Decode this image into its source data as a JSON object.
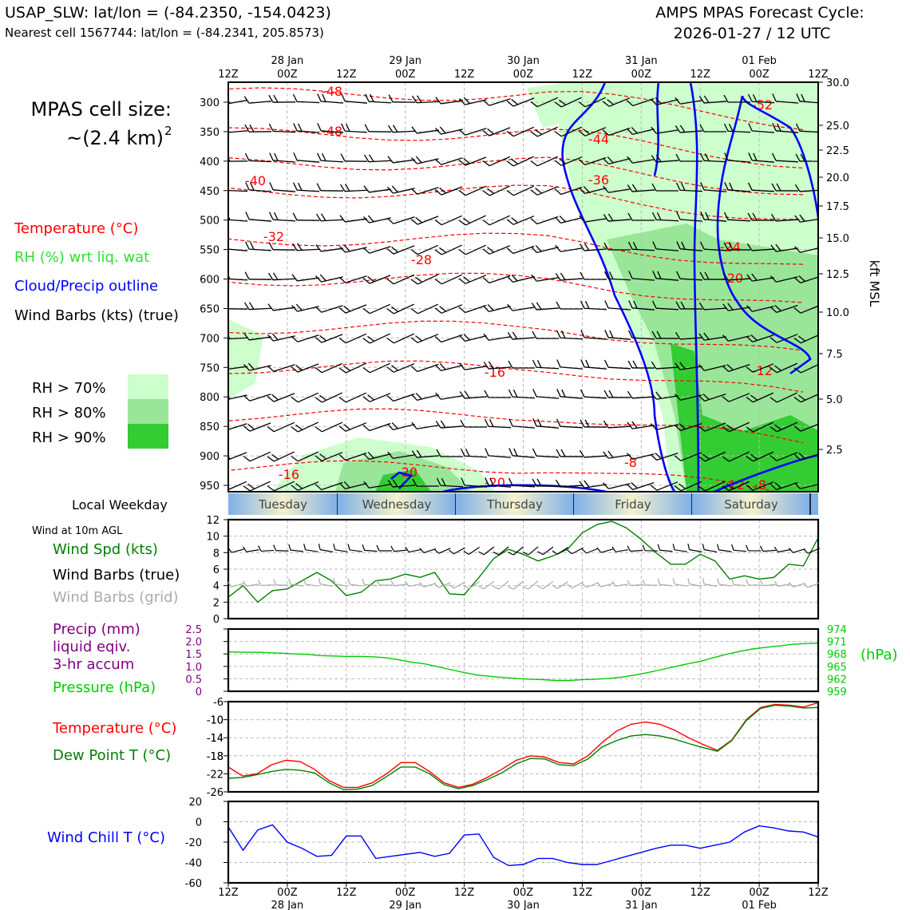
{
  "header": {
    "station_line": "USAP_SLW: lat/lon = (-84.2350, -154.0423)",
    "nearest_line": "Nearest cell 1567744: lat/lon = (-84.2341, 205.8573)",
    "forecast_title": "AMPS MPAS Forecast Cycle:",
    "forecast_cycle": "2026-01-27 / 12 UTC"
  },
  "left_panel": {
    "cell_size_label": "MPAS cell size:",
    "cell_size_value": "~(2.4 km)",
    "cell_size_exponent": "2",
    "legend": [
      {
        "text": "Temperature (°C)",
        "color": "#ff0000"
      },
      {
        "text": "RH (%) wrt liq. wat",
        "color": "#33dd33"
      },
      {
        "text": "Cloud/Precip outline",
        "color": "#0000ff"
      },
      {
        "text": "Wind Barbs (kts) (true)",
        "color": "#000000"
      }
    ],
    "rh_legend": [
      {
        "text": "RH > 70%",
        "color": "#ccffcc"
      },
      {
        "text": "RH > 80%",
        "color": "#99e699"
      },
      {
        "text": "RH > 90%",
        "color": "#33cc33"
      }
    ],
    "weekday_label": "Local Weekday",
    "wind10m_label": "Wind at 10m AGL",
    "wind_legend": [
      {
        "text": "Wind Spd (kts)",
        "color": "#008000"
      },
      {
        "text": "Wind Barbs (true)",
        "color": "#000000"
      },
      {
        "text": "Wind Barbs (grid)",
        "color": "#aaaaaa"
      }
    ],
    "precip_legend": [
      {
        "text": "Precip (mm)",
        "color": "#800080"
      },
      {
        "text": "liquid eqiv.",
        "color": "#800080"
      },
      {
        "text": "3-hr accum",
        "color": "#800080"
      },
      {
        "text": "Pressure (hPa)",
        "color": "#00cc00"
      }
    ],
    "temp_legend": [
      {
        "text": "Temperature (°C)",
        "color": "#ff0000"
      },
      {
        "text": "Dew Point T (°C)",
        "color": "#008000"
      }
    ],
    "windchill_legend": {
      "text": "Wind Chill T (°C)",
      "color": "#0000ff"
    }
  },
  "time_axis": {
    "hour_labels": [
      "12Z",
      "00Z",
      "12Z",
      "00Z",
      "12Z",
      "00Z",
      "12Z",
      "00Z",
      "12Z",
      "00Z",
      "12Z"
    ],
    "date_labels": [
      "28 Jan",
      "29 Jan",
      "30 Jan",
      "31 Jan",
      "01 Feb"
    ]
  },
  "weekdays": [
    "Tuesday",
    "Wednesday",
    "Thursday",
    "Friday",
    "Saturday"
  ],
  "chart_data": [
    {
      "type": "heatmap",
      "title": "Time-height cross section",
      "ylabel_left": "",
      "ylabel_right": "kft MSL",
      "pressure_ticks": [
        300,
        350,
        400,
        450,
        500,
        550,
        600,
        650,
        700,
        750,
        800,
        850,
        900,
        950
      ],
      "height_ticks": [
        "30.0",
        "25.0",
        "22.5",
        "20.0",
        "17.5",
        "15.0",
        "12.5",
        "10.0",
        "7.5",
        "5.0",
        "2.5"
      ],
      "temperature_labels": [
        "-52",
        "-48",
        "-48",
        "-44",
        "-40",
        "-36",
        "-32",
        "-28",
        "-24",
        "-20",
        "-16",
        "-12",
        "-8",
        "-16",
        "-20",
        "-20",
        "-12",
        "-8"
      ]
    },
    {
      "type": "line",
      "title": "Wind at 10m AGL",
      "ylim": [
        0,
        12
      ],
      "yticks": [
        "0",
        "2",
        "4",
        "6",
        "8",
        "10",
        "12"
      ],
      "series": [
        {
          "name": "Wind Spd (kts)",
          "color": "#008000",
          "values": [
            2.6,
            4.0,
            2.0,
            3.4,
            3.6,
            4.6,
            5.6,
            4.6,
            2.8,
            3.2,
            4.6,
            4.8,
            5.4,
            5.0,
            5.6,
            3.0,
            2.9,
            5.0,
            7.3,
            8.4,
            7.8,
            7.0,
            7.6,
            8.4,
            10.4,
            11.4,
            11.8,
            11.0,
            9.6,
            8.0,
            6.6,
            6.6,
            7.8,
            7.0,
            4.8,
            5.2,
            4.8,
            5.0,
            6.6,
            6.4,
            9.8
          ]
        }
      ]
    },
    {
      "type": "line",
      "title": "Precip / Pressure",
      "ylim_left": [
        0,
        2.5
      ],
      "yticks_left": [
        "0",
        "0.5",
        "1.0",
        "1.5",
        "2.0",
        "2.5"
      ],
      "ylim_right": [
        959,
        974
      ],
      "yticks_right": [
        "959",
        "962",
        "965",
        "968",
        "971",
        "974"
      ],
      "ylabel_right": "(hPa)",
      "series": [
        {
          "name": "Pressure (hPa)",
          "color": "#00cc00",
          "values": [
            968.5,
            968.4,
            968.4,
            968.3,
            968.2,
            968.0,
            967.9,
            967.6,
            967.5,
            967.4,
            967.4,
            967.3,
            967.1,
            966.6,
            966.0,
            965.6,
            964.9,
            964.2,
            963.5,
            962.9,
            962.6,
            962.3,
            962.1,
            961.9,
            961.8,
            961.6,
            961.6,
            961.8,
            961.9,
            962.1,
            962.4,
            962.9,
            963.5,
            964.2,
            964.9,
            965.6,
            966.2,
            967.1,
            967.9,
            968.6,
            969.2,
            969.6,
            969.9,
            970.3,
            970.5,
            970.6
          ]
        }
      ]
    },
    {
      "type": "line",
      "title": "Temperature / Dew Point",
      "ylim": [
        -26,
        -6
      ],
      "yticks": [
        "-26",
        "-22",
        "-18",
        "-14",
        "-10",
        "-6"
      ],
      "series": [
        {
          "name": "Temperature (°C)",
          "color": "#ff0000",
          "values": [
            -20.5,
            -22.5,
            -22.0,
            -20.0,
            -19.0,
            -19.3,
            -21.0,
            -23.5,
            -25.0,
            -25.0,
            -24.0,
            -22.0,
            -19.5,
            -19.5,
            -21.5,
            -24.0,
            -25.0,
            -24.3,
            -22.8,
            -21.0,
            -19.0,
            -18.0,
            -18.3,
            -19.5,
            -19.8,
            -18.0,
            -15.0,
            -12.5,
            -11.0,
            -10.5,
            -11.0,
            -12.3,
            -14.0,
            -15.5,
            -16.8,
            -14.5,
            -10.0,
            -7.3,
            -6.6,
            -6.8,
            -7.2,
            -6.2
          ]
        },
        {
          "name": "Dew Point T (°C)",
          "color": "#008000",
          "values": [
            -23.0,
            -22.8,
            -22.2,
            -21.5,
            -21.0,
            -21.2,
            -21.8,
            -24.0,
            -25.5,
            -25.4,
            -24.6,
            -22.6,
            -20.5,
            -20.5,
            -22.0,
            -24.4,
            -25.3,
            -24.6,
            -23.3,
            -21.8,
            -19.8,
            -18.6,
            -18.7,
            -20.0,
            -20.2,
            -18.7,
            -16.0,
            -14.6,
            -13.6,
            -13.3,
            -13.6,
            -14.3,
            -15.3,
            -16.2,
            -17.0,
            -14.6,
            -10.2,
            -7.5,
            -6.8,
            -7.0,
            -7.4,
            -7.3
          ]
        }
      ]
    },
    {
      "type": "line",
      "title": "Wind Chill",
      "ylim": [
        -60,
        20
      ],
      "yticks": [
        "-60",
        "-40",
        "-20",
        "0",
        "20"
      ],
      "series": [
        {
          "name": "Wind Chill T (°C)",
          "color": "#0000ff",
          "values": [
            -5,
            -28,
            -8,
            -3,
            -20,
            -26,
            -34,
            -33,
            -14,
            -14,
            -36,
            -34,
            -32,
            -30,
            -34,
            -31,
            -13,
            -12,
            -35,
            -43,
            -42,
            -36,
            -36,
            -40,
            -42,
            -42,
            -38,
            -34,
            -30,
            -26,
            -23,
            -23,
            -26,
            -23,
            -20,
            -10,
            -4,
            -6,
            -9,
            -10,
            -15
          ]
        }
      ]
    }
  ]
}
